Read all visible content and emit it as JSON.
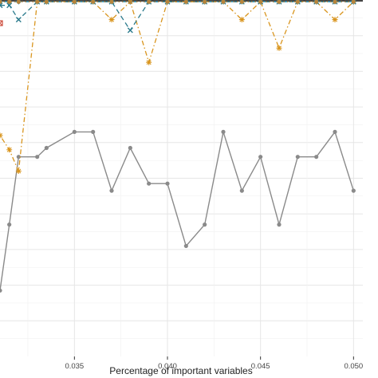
{
  "chart_data": {
    "type": "line",
    "title": "",
    "xlabel": "Percentage of important variables",
    "ylabel": "",
    "xlim": [
      0.031,
      0.0505
    ],
    "ylim": [
      0,
      1
    ],
    "x_ticks": [
      0.035,
      0.04,
      0.045,
      0.05
    ],
    "x_tick_labels": [
      "0.035",
      "0.040",
      "0.045",
      "0.050"
    ],
    "grid": true,
    "x": [
      0.031,
      0.0315,
      0.032,
      0.033,
      0.0335,
      0.035,
      0.036,
      0.037,
      0.038,
      0.039,
      0.04,
      0.041,
      0.042,
      0.043,
      0.044,
      0.045,
      0.046,
      0.047,
      0.048,
      0.049,
      0.05
    ],
    "series": [
      {
        "color": "#8a8a8a",
        "line_style": "solid",
        "marker": "circle",
        "values": [
          0.185,
          0.37,
          0.56,
          0.56,
          0.585,
          0.63,
          0.63,
          0.465,
          0.585,
          0.485,
          0.485,
          0.31,
          0.37,
          0.63,
          0.465,
          0.56,
          0.37,
          0.56,
          0.56,
          0.63,
          0.465
        ]
      },
      {
        "color": "#d9951e",
        "line_style": "dotdash",
        "marker": "asterisk",
        "values": [
          0.62,
          0.58,
          0.52,
          0.995,
          0.995,
          0.995,
          0.995,
          0.945,
          0.995,
          0.825,
          0.995,
          0.995,
          0.995,
          0.995,
          0.945,
          0.995,
          0.865,
          0.995,
          0.995,
          0.945,
          0.995
        ]
      },
      {
        "color": "#2a7a8c",
        "line_style": "dashed",
        "marker": "cross",
        "values": [
          0.985,
          0.985,
          0.945,
          0.995,
          0.995,
          0.995,
          0.995,
          0.995,
          0.915,
          0.995,
          0.995,
          0.995,
          0.995,
          0.995,
          0.995,
          0.995,
          0.995,
          0.995,
          0.995,
          0.995,
          0.995
        ]
      },
      {
        "color": "#3aa0c8",
        "line_style": "dotdash",
        "marker": "diamond",
        "values": [
          0.995,
          0.995,
          0.995,
          0.995,
          0.995,
          0.995,
          0.995,
          0.995,
          0.995,
          0.995,
          0.995,
          0.995,
          0.995,
          0.995,
          0.995,
          0.995,
          0.995,
          0.995,
          0.995,
          0.995,
          0.995
        ]
      },
      {
        "color": "#b8843a",
        "line_style": "dotted",
        "marker": "circle",
        "values": [
          0.995,
          0.995,
          0.995,
          0.995,
          0.995,
          0.995,
          0.995,
          0.995,
          0.995,
          0.995,
          0.995,
          0.995,
          0.995,
          0.995,
          0.995,
          0.995,
          0.995,
          0.995,
          0.995,
          0.995,
          0.995
        ]
      },
      {
        "color": "#cc4a3a",
        "line_style": "none",
        "marker": "square-cross",
        "values": [
          0.935,
          null,
          null,
          null,
          null,
          null,
          null,
          null,
          null,
          null,
          null,
          null,
          null,
          null,
          null,
          null,
          null,
          null,
          null,
          null,
          null
        ]
      }
    ]
  }
}
